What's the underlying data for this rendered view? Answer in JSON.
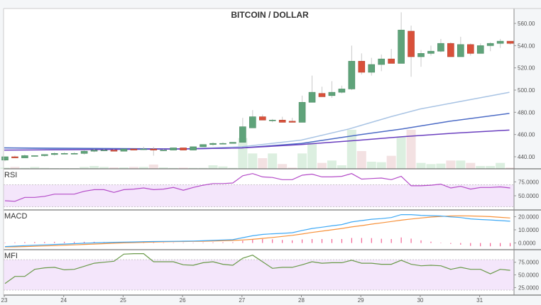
{
  "chart_data": {
    "type": "candlestick",
    "title": "BITCOIN / DOLLAR",
    "x_tick_labels": [
      "23",
      "24",
      "25",
      "26",
      "27",
      "28",
      "29",
      "30",
      "31"
    ],
    "candle_interval_days": 0.1667,
    "first_candle_day": 23,
    "price_axis": {
      "ticks": [
        "440.00",
        "460.00",
        "480.00",
        "500.00",
        "520.00",
        "540.00",
        "560.00"
      ],
      "ylim": [
        433,
        572
      ]
    },
    "colors": {
      "up": "#5fa37a",
      "down": "#d9503a",
      "up_volume": "#dcefe0",
      "down_volume": "#f3e1e2",
      "ma_light": "#a9c4e4",
      "ma_blue": "#4d6cc6",
      "ma_purple": "#6a3fbf",
      "rsi": "#b44bc8",
      "macd": "#3fa9f5",
      "signal": "#f7913a",
      "hist": "#f0447f",
      "mfi": "#6a9a4a",
      "band": "#f4e6fb"
    },
    "ohlc": [
      [
        437,
        440,
        436,
        440
      ],
      [
        440,
        441,
        439,
        439
      ],
      [
        439,
        442,
        439,
        441
      ],
      [
        441,
        441,
        440,
        441
      ],
      [
        441,
        442,
        440,
        442
      ],
      [
        442,
        444,
        441,
        443
      ],
      [
        443,
        444,
        443,
        443
      ],
      [
        443,
        444,
        443,
        443
      ],
      [
        443,
        446,
        442,
        445
      ],
      [
        445,
        447,
        444,
        446
      ],
      [
        446,
        447,
        445,
        446
      ],
      [
        446,
        447,
        445,
        445
      ],
      [
        445,
        447,
        445,
        447
      ],
      [
        447,
        447,
        446,
        446
      ],
      [
        447,
        449,
        446,
        447
      ],
      [
        447,
        449,
        441,
        446
      ],
      [
        446,
        447,
        446,
        446
      ],
      [
        446,
        448,
        446,
        448
      ],
      [
        448,
        448,
        446,
        446
      ],
      [
        446,
        449,
        446,
        449
      ],
      [
        449,
        451,
        449,
        451
      ],
      [
        451,
        453,
        450,
        452
      ],
      [
        452,
        453,
        452,
        452
      ],
      [
        452,
        453,
        452,
        453
      ],
      [
        453,
        475,
        453,
        467
      ],
      [
        466,
        482,
        466,
        476
      ],
      [
        476,
        478,
        473,
        473
      ],
      [
        473,
        474,
        471,
        473
      ],
      [
        473,
        476,
        471,
        471
      ],
      [
        472,
        475,
        471,
        471
      ],
      [
        471,
        495,
        471,
        489
      ],
      [
        489,
        513,
        489,
        498
      ],
      [
        497,
        503,
        494,
        494
      ],
      [
        495,
        508,
        493,
        498
      ],
      [
        498,
        504,
        497,
        501
      ],
      [
        501,
        540,
        500,
        526
      ],
      [
        526,
        533,
        514,
        516
      ],
      [
        516,
        529,
        513,
        523
      ],
      [
        523,
        532,
        517,
        528
      ],
      [
        528,
        537,
        524,
        524
      ],
      [
        524,
        570,
        524,
        554
      ],
      [
        553,
        558,
        512,
        530
      ],
      [
        530,
        536,
        521,
        533
      ],
      [
        533,
        540,
        531,
        535
      ],
      [
        535,
        546,
        534,
        542
      ],
      [
        542,
        543,
        530,
        530
      ],
      [
        530,
        548,
        530,
        541
      ],
      [
        541,
        542,
        531,
        533
      ],
      [
        533,
        542,
        533,
        540
      ],
      [
        540,
        543,
        535,
        542
      ],
      [
        542,
        546,
        538,
        544
      ],
      [
        544,
        544,
        541,
        542
      ]
    ],
    "volume": [
      5,
      8,
      4,
      8,
      4,
      3,
      3,
      3,
      8,
      12,
      8,
      6,
      6,
      8,
      8,
      18,
      6,
      4,
      5,
      4,
      4,
      15,
      10,
      4,
      130,
      65,
      45,
      65,
      20,
      5,
      65,
      110,
      25,
      35,
      15,
      165,
      75,
      30,
      28,
      55,
      135,
      165,
      25,
      20,
      22,
      35,
      35,
      25,
      12,
      12,
      25,
      5
    ],
    "moving_averages": [
      {
        "color_key": "ma_light",
        "points": [
          [
            23,
            448
          ],
          [
            24,
            447
          ],
          [
            25,
            447
          ],
          [
            26,
            447
          ],
          [
            27,
            449
          ],
          [
            28,
            455
          ],
          [
            28.8,
            465
          ],
          [
            29.5,
            476
          ],
          [
            30,
            483
          ],
          [
            31,
            493
          ],
          [
            31.5,
            498
          ]
        ]
      },
      {
        "color_key": "ma_blue",
        "points": [
          [
            23,
            448
          ],
          [
            26,
            447
          ],
          [
            27,
            448
          ],
          [
            28,
            452
          ],
          [
            29,
            460
          ],
          [
            29.7,
            465
          ],
          [
            30.5,
            472
          ],
          [
            31.5,
            479
          ]
        ]
      },
      {
        "color_key": "ma_purple",
        "points": [
          [
            23,
            446
          ],
          [
            26,
            447
          ],
          [
            27,
            448
          ],
          [
            28,
            451
          ],
          [
            29,
            455
          ],
          [
            29.7,
            458
          ],
          [
            30.5,
            461
          ],
          [
            31.5,
            464
          ]
        ]
      }
    ],
    "rsi": {
      "label": "RSI",
      "ticks": [
        "50.0000",
        "75.0000"
      ],
      "band": [
        30,
        70
      ],
      "ylim": [
        27,
        96
      ],
      "values": [
        41,
        40,
        47,
        47,
        49,
        53,
        53,
        53,
        58,
        61,
        61,
        56,
        61,
        62,
        64,
        61,
        62,
        65,
        60,
        65,
        69,
        72,
        72,
        73,
        86,
        90,
        84,
        83,
        79,
        79,
        87,
        89,
        84,
        84,
        85,
        90,
        80,
        81,
        82,
        79,
        85,
        68,
        68,
        69,
        71,
        64,
        67,
        62,
        65,
        65,
        66,
        64
      ]
    },
    "macd": {
      "label": "MACD",
      "ticks": [
        "0.0000",
        "10.0000",
        "20.0000"
      ],
      "ylim": [
        -4,
        24
      ],
      "macd": [
        -2.7,
        -2.4,
        -2.0,
        -1.7,
        -1.4,
        -1.1,
        -0.8,
        -0.5,
        -0.2,
        0.1,
        0.3,
        0.5,
        0.7,
        0.8,
        1.0,
        1.1,
        1.2,
        1.3,
        1.4,
        1.5,
        1.7,
        2.0,
        2.3,
        2.5,
        4.0,
        5.5,
        6.5,
        7.0,
        7.3,
        7.8,
        9.5,
        11,
        12,
        13,
        14,
        16,
        17,
        18,
        18.5,
        19.3,
        21.5,
        21.5,
        21,
        20.7,
        20.5,
        19.8,
        19.3,
        18.3,
        17.8,
        17.5,
        17,
        16.5
      ],
      "signal": [
        -3,
        -2.9,
        -2.7,
        -2.5,
        -2.2,
        -2.0,
        -1.7,
        -1.4,
        -1.1,
        -0.8,
        -0.5,
        -0.2,
        0.1,
        0.3,
        0.5,
        0.7,
        0.9,
        1.0,
        1.1,
        1.2,
        1.3,
        1.5,
        1.7,
        1.9,
        2.3,
        2.8,
        3.5,
        4.2,
        5.0,
        5.8,
        6.8,
        8.0,
        9.0,
        10,
        11,
        12.2,
        13.2,
        14.3,
        15.3,
        16.3,
        17.3,
        18.2,
        19,
        19.7,
        20.2,
        20.5,
        20.6,
        20.5,
        20.3,
        20,
        19.5,
        19
      ]
    },
    "mfi": {
      "label": "MFI",
      "ticks": [
        "25.0000",
        "50.0000",
        "75.0000"
      ],
      "band": [
        20,
        80
      ],
      "ylim": [
        13,
        97
      ],
      "values": [
        33,
        47,
        47,
        61,
        64,
        65,
        60,
        61,
        67,
        73,
        75,
        77,
        91,
        92,
        92,
        76,
        76,
        76,
        70,
        69,
        74,
        76,
        71,
        69,
        83,
        89,
        76,
        63,
        65,
        65,
        70,
        76,
        73,
        74,
        74,
        79,
        73,
        73,
        71,
        71,
        79,
        71,
        68,
        69,
        68,
        61,
        65,
        61,
        61,
        52,
        61,
        59
      ]
    }
  }
}
